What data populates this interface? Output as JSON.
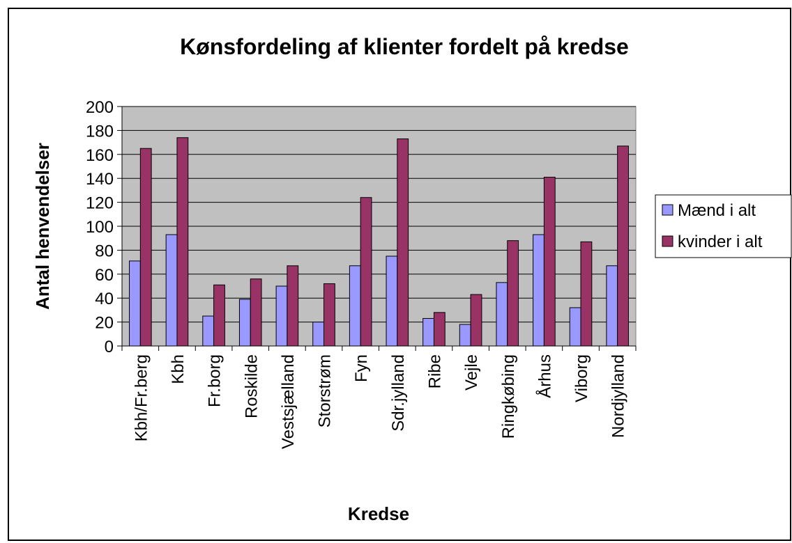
{
  "chart_data": {
    "type": "bar",
    "title": "Kønsfordeling af klienter fordelt på kredse",
    "xlabel": "Kredse",
    "ylabel": "Antal henvendelser",
    "categories": [
      "Kbh/Fr.berg",
      "Kbh",
      "Fr.borg",
      "Roskilde",
      "Vestsjælland",
      "Storstrøm",
      "Fyn",
      "Sdr.jylland",
      "Ribe",
      "Vejle",
      "Ringkøbing",
      "Århus",
      "Viborg",
      "Nordjylland"
    ],
    "series": [
      {
        "name": "Mænd i alt",
        "color": "#9999ff",
        "values": [
          71,
          93,
          25,
          39,
          50,
          20,
          67,
          75,
          23,
          18,
          53,
          93,
          32,
          67
        ]
      },
      {
        "name": "kvinder i alt",
        "color": "#993366",
        "values": [
          165,
          174,
          51,
          56,
          67,
          52,
          124,
          173,
          28,
          43,
          88,
          141,
          87,
          167
        ]
      }
    ],
    "ylim": [
      0,
      200
    ],
    "yticks": [
      0,
      20,
      40,
      60,
      80,
      100,
      120,
      140,
      160,
      180,
      200
    ],
    "grid": true,
    "legend": "right"
  }
}
